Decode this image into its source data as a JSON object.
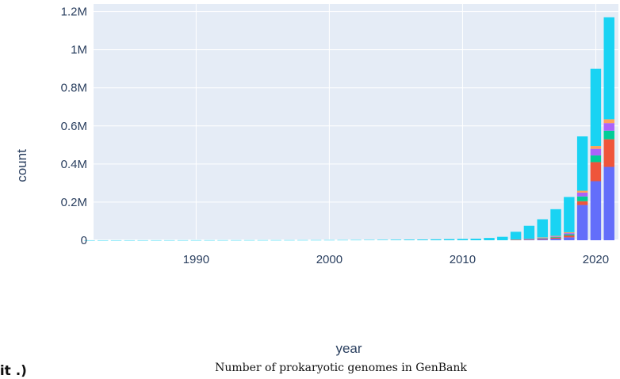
{
  "caption": "Number of prokaryotic genomes in GenBank",
  "edge_fragment": "lit .)",
  "chart_data": {
    "type": "bar",
    "stacked": true,
    "xlabel": "year",
    "ylabel": "count",
    "xlim": [
      1982.3,
      2021.7
    ],
    "ylim": [
      0,
      1240000
    ],
    "x_ticks": [
      1990,
      2000,
      2010,
      2020
    ],
    "x_tick_labels": [
      "1990",
      "2000",
      "2010",
      "2020"
    ],
    "y_ticks": [
      0,
      200000,
      400000,
      600000,
      800000,
      1000000,
      1200000
    ],
    "y_tick_labels": [
      "0",
      "0.2M",
      "0.4M",
      "0.6M",
      "0.8M",
      "1M",
      "1.2M"
    ],
    "grid": true,
    "background": "#e5ecf6",
    "x": [
      1982,
      1983,
      1984,
      1985,
      1986,
      1987,
      1988,
      1989,
      1990,
      1991,
      1992,
      1993,
      1994,
      1995,
      1996,
      1997,
      1998,
      1999,
      2000,
      2001,
      2002,
      2003,
      2004,
      2005,
      2006,
      2007,
      2008,
      2009,
      2010,
      2011,
      2012,
      2013,
      2014,
      2015,
      2016,
      2017,
      2018,
      2019,
      2020,
      2021
    ],
    "series": [
      {
        "color": "#636efa",
        "values": [
          0,
          0,
          0,
          0,
          0,
          0,
          0,
          0,
          0,
          0,
          0,
          0,
          0,
          0,
          0,
          0,
          0,
          0,
          0,
          0,
          0,
          0,
          0,
          0,
          0,
          0,
          0,
          0,
          0,
          0,
          0,
          0,
          2000,
          3000,
          5000,
          8000,
          15000,
          185000,
          310000,
          385000
        ]
      },
      {
        "color": "#ef553b",
        "values": [
          0,
          0,
          0,
          0,
          0,
          0,
          0,
          0,
          0,
          0,
          0,
          0,
          0,
          0,
          0,
          0,
          0,
          0,
          0,
          0,
          0,
          0,
          0,
          0,
          0,
          0,
          0,
          0,
          0,
          0,
          0,
          0,
          1000,
          2000,
          4000,
          6000,
          10000,
          20000,
          100000,
          145000
        ]
      },
      {
        "color": "#00cc96",
        "values": [
          0,
          0,
          0,
          0,
          0,
          0,
          0,
          0,
          0,
          0,
          0,
          0,
          0,
          0,
          0,
          0,
          0,
          0,
          0,
          0,
          0,
          0,
          0,
          0,
          0,
          0,
          0,
          0,
          0,
          0,
          0,
          0,
          500,
          1000,
          2000,
          3000,
          6000,
          25000,
          35000,
          45000
        ]
      },
      {
        "color": "#ab63fa",
        "values": [
          0,
          0,
          0,
          0,
          0,
          0,
          0,
          0,
          0,
          0,
          0,
          0,
          0,
          0,
          0,
          0,
          0,
          0,
          0,
          0,
          0,
          0,
          0,
          0,
          0,
          0,
          0,
          0,
          0,
          0,
          0,
          0,
          500,
          1000,
          2000,
          3000,
          6000,
          20000,
          35000,
          40000
        ]
      },
      {
        "color": "#ffa15a",
        "values": [
          0,
          0,
          0,
          0,
          0,
          0,
          0,
          0,
          0,
          0,
          0,
          0,
          0,
          0,
          0,
          0,
          0,
          0,
          0,
          0,
          0,
          0,
          0,
          0,
          0,
          0,
          0,
          0,
          0,
          0,
          0,
          0,
          500,
          1000,
          2000,
          3000,
          5000,
          10000,
          15000,
          20000
        ]
      },
      {
        "color": "#19d3f3",
        "values": [
          200,
          250,
          300,
          350,
          400,
          450,
          500,
          550,
          600,
          650,
          700,
          750,
          800,
          850,
          900,
          1000,
          1100,
          1200,
          1300,
          1500,
          1700,
          2000,
          2500,
          3000,
          3500,
          4000,
          5000,
          6000,
          7000,
          8000,
          12000,
          18000,
          40000,
          68000,
          95000,
          140000,
          185000,
          285000,
          405000,
          535000
        ]
      }
    ]
  }
}
